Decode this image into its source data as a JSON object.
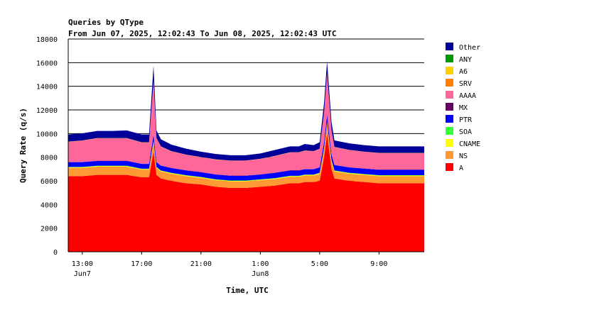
{
  "chart_data": {
    "type": "area",
    "stacked": true,
    "title": "Queries by QType",
    "subtitle": "From Jun 07, 2025, 12:02:43 To Jun 08, 2025, 12:02:43 UTC",
    "xlabel": "Time, UTC",
    "ylabel": "Query Rate (q/s)",
    "ylim": [
      0,
      18000
    ],
    "yticks": [
      0,
      2000,
      4000,
      6000,
      8000,
      10000,
      12000,
      14000,
      16000,
      18000
    ],
    "xlim": [
      12.05,
      36.05
    ],
    "xticks": [
      {
        "value": 13,
        "label": "13:00",
        "sublabel": "Jun7"
      },
      {
        "value": 17,
        "label": "17:00",
        "sublabel": ""
      },
      {
        "value": 21,
        "label": "21:00",
        "sublabel": ""
      },
      {
        "value": 25,
        "label": "1:00",
        "sublabel": "Jun8"
      },
      {
        "value": 29,
        "label": "5:00",
        "sublabel": ""
      },
      {
        "value": 33,
        "label": "9:00",
        "sublabel": ""
      }
    ],
    "grid": "horizontal",
    "legend_position": "right",
    "legend_order": [
      "Other",
      "ANY",
      "A6",
      "SRV",
      "AAAA",
      "MX",
      "PTR",
      "SOA",
      "CNAME",
      "NS",
      "A"
    ],
    "x": [
      12.05,
      13,
      14,
      15,
      16,
      17,
      17.5,
      17.8,
      18,
      18.3,
      19,
      20,
      21,
      22,
      23,
      24,
      25,
      26,
      27,
      27.6,
      28,
      28.6,
      29,
      29.3,
      29.5,
      29.8,
      30,
      31,
      32,
      33,
      34,
      35,
      36.05
    ],
    "series": [
      {
        "name": "A",
        "color": "#ff0000",
        "values": [
          6400,
          6400,
          6500,
          6500,
          6500,
          6300,
          6300,
          8500,
          6500,
          6200,
          6000,
          5800,
          5700,
          5500,
          5400,
          5400,
          5500,
          5600,
          5800,
          5800,
          5900,
          5900,
          6000,
          8000,
          10000,
          7000,
          6200,
          6000,
          5900,
          5800,
          5800,
          5800,
          5800
        ]
      },
      {
        "name": "NS",
        "color": "#ff9933",
        "values": [
          700,
          700,
          700,
          700,
          700,
          650,
          650,
          800,
          600,
          600,
          600,
          600,
          550,
          550,
          550,
          550,
          550,
          550,
          550,
          550,
          550,
          550,
          600,
          700,
          900,
          700,
          600,
          600,
          600,
          600,
          600,
          600,
          600
        ]
      },
      {
        "name": "CNAME",
        "color": "#ffff00",
        "values": [
          50,
          50,
          50,
          50,
          50,
          50,
          50,
          60,
          50,
          50,
          50,
          50,
          50,
          50,
          50,
          50,
          50,
          50,
          50,
          50,
          50,
          50,
          50,
          50,
          50,
          50,
          50,
          50,
          50,
          50,
          50,
          50,
          50
        ]
      },
      {
        "name": "SOA",
        "color": "#33ff33",
        "values": [
          30,
          30,
          30,
          30,
          30,
          30,
          30,
          40,
          30,
          30,
          30,
          30,
          30,
          30,
          30,
          30,
          30,
          30,
          30,
          30,
          30,
          30,
          30,
          30,
          30,
          30,
          30,
          30,
          30,
          30,
          30,
          30,
          30
        ]
      },
      {
        "name": "PTR",
        "color": "#0000ff",
        "values": [
          400,
          400,
          400,
          400,
          400,
          400,
          400,
          500,
          400,
          400,
          400,
          400,
          400,
          400,
          400,
          400,
          400,
          450,
          450,
          450,
          450,
          450,
          450,
          500,
          600,
          450,
          450,
          450,
          450,
          450,
          450,
          450,
          450
        ]
      },
      {
        "name": "MX",
        "color": "#660066",
        "values": [
          20,
          20,
          20,
          20,
          20,
          20,
          20,
          20,
          20,
          20,
          20,
          20,
          20,
          20,
          20,
          20,
          20,
          20,
          20,
          20,
          20,
          20,
          20,
          20,
          20,
          20,
          20,
          20,
          20,
          20,
          20,
          20,
          20
        ]
      },
      {
        "name": "AAAA",
        "color": "#ff6699",
        "values": [
          1700,
          1800,
          1900,
          1900,
          1900,
          1800,
          1800,
          4500,
          2000,
          1600,
          1400,
          1300,
          1250,
          1250,
          1250,
          1250,
          1300,
          1400,
          1500,
          1500,
          1550,
          1500,
          1550,
          2500,
          3500,
          2000,
          1500,
          1450,
          1400,
          1400,
          1400,
          1400,
          1400
        ]
      },
      {
        "name": "SRV",
        "color": "#ff8000",
        "values": [
          10,
          10,
          10,
          10,
          10,
          10,
          10,
          10,
          10,
          10,
          10,
          10,
          10,
          10,
          10,
          10,
          10,
          10,
          10,
          10,
          10,
          10,
          10,
          10,
          10,
          10,
          10,
          10,
          10,
          10,
          10,
          10,
          10
        ]
      },
      {
        "name": "A6",
        "color": "#ffd000",
        "values": [
          5,
          5,
          5,
          5,
          5,
          5,
          5,
          5,
          5,
          5,
          5,
          5,
          5,
          5,
          5,
          5,
          5,
          5,
          5,
          5,
          5,
          5,
          5,
          5,
          5,
          5,
          5,
          5,
          5,
          5,
          5,
          5,
          5
        ]
      },
      {
        "name": "ANY",
        "color": "#009900",
        "values": [
          5,
          5,
          5,
          5,
          5,
          5,
          5,
          5,
          5,
          5,
          5,
          5,
          5,
          5,
          5,
          5,
          5,
          5,
          5,
          5,
          5,
          5,
          5,
          5,
          5,
          5,
          5,
          5,
          5,
          5,
          5,
          5,
          5
        ]
      },
      {
        "name": "Other",
        "color": "#000099",
        "values": [
          600,
          600,
          600,
          600,
          650,
          650,
          650,
          1300,
          650,
          600,
          550,
          500,
          450,
          450,
          450,
          450,
          450,
          500,
          500,
          500,
          550,
          500,
          550,
          800,
          1000,
          700,
          550,
          550,
          550,
          550,
          550,
          550,
          550
        ]
      }
    ]
  }
}
